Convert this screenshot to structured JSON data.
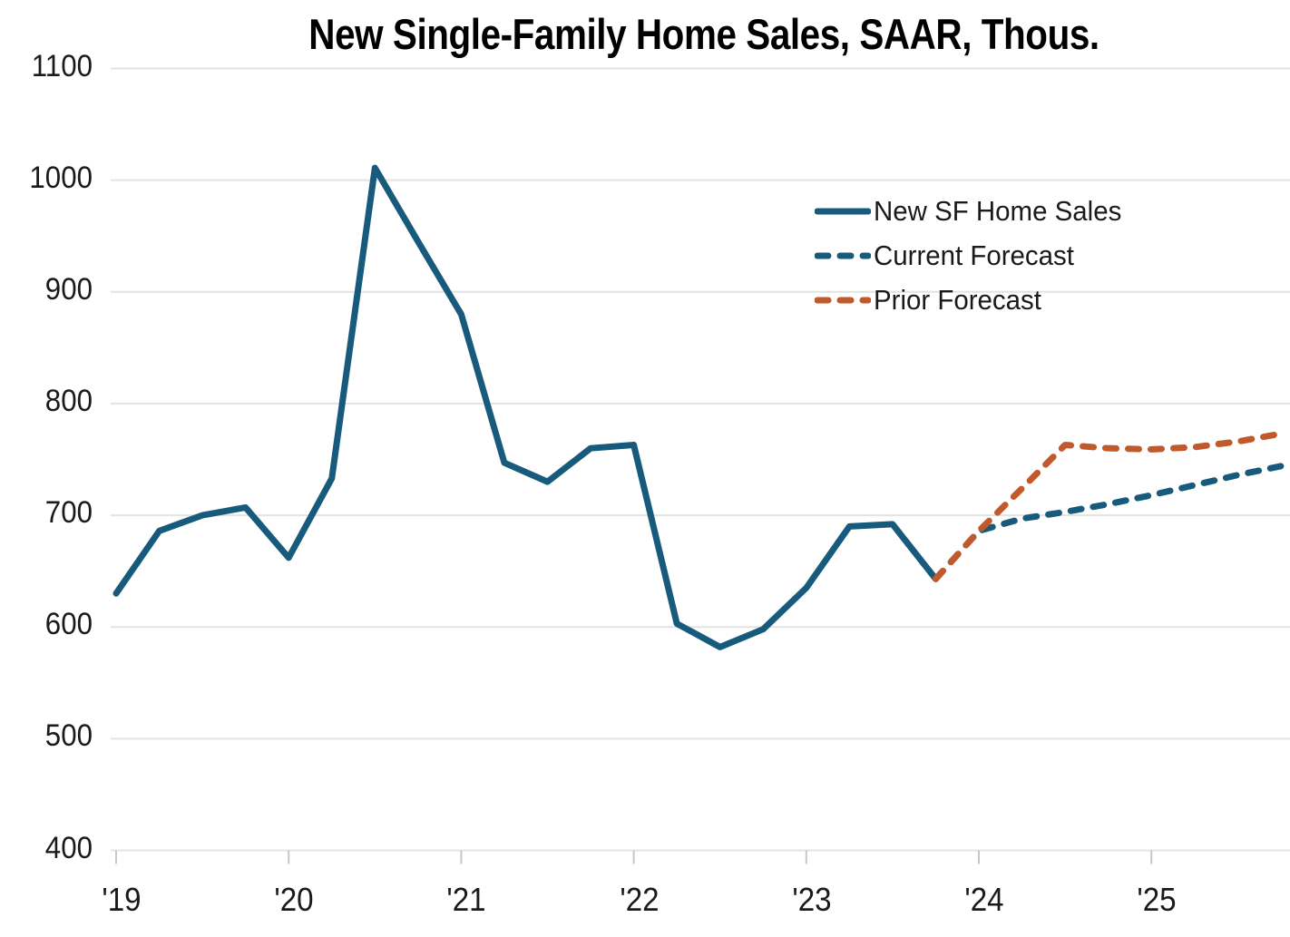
{
  "chart": {
    "title": "New Single-Family Home Sales, SAAR, Thous."
  },
  "colors": {
    "actual_line": "#175A7C",
    "current_forecast_line": "#175A7C",
    "prior_forecast_line": "#C05A2C",
    "grid": "#e3e3e3",
    "axis_tick": "#c8c8c8",
    "text": "#1a1a1a",
    "title_text": "#000000",
    "background": "#ffffff"
  },
  "chart_data": {
    "type": "line",
    "title": "New Single-Family Home Sales, SAAR, Thous.",
    "grid": true,
    "legend_position": "upper right",
    "x_axis": {
      "unit": "quarter",
      "tick_labels": [
        "'19",
        "'20",
        "'21",
        "'22",
        "'23",
        "'24",
        "'25"
      ],
      "tick_quarter_indices": [
        0,
        4,
        8,
        12,
        16,
        20,
        24
      ]
    },
    "y_axis": {
      "min": 400,
      "max": 1100,
      "ticks": [
        400,
        500,
        600,
        700,
        800,
        900,
        1000,
        1100
      ]
    },
    "categories": [
      "2019 Q1",
      "2019 Q2",
      "2019 Q3",
      "2019 Q4",
      "2020 Q1",
      "2020 Q2",
      "2020 Q3",
      "2020 Q4",
      "2021 Q1",
      "2021 Q2",
      "2021 Q3",
      "2021 Q4",
      "2022 Q1",
      "2022 Q2",
      "2022 Q3",
      "2022 Q4",
      "2023 Q1",
      "2023 Q2",
      "2023 Q3",
      "2023 Q4",
      "2024 Q1",
      "2024 Q2",
      "2024 Q3",
      "2024 Q4",
      "2025 Q1",
      "2025 Q2",
      "2025 Q3",
      "2025 Q4"
    ],
    "series": [
      {
        "name": "New SF Home Sales",
        "style": "solid",
        "color": "#175A7C",
        "start": 0,
        "values": [
          630,
          686,
          700,
          707,
          662,
          733,
          1011,
          945,
          880,
          747,
          730,
          760,
          763,
          603,
          582,
          598,
          635,
          690,
          692,
          643
        ]
      },
      {
        "name": "Current Forecast",
        "style": "dashed",
        "color": "#175A7C",
        "start": 19,
        "values": [
          643,
          686,
          697,
          703,
          710,
          718,
          727,
          736,
          744
        ]
      },
      {
        "name": "Prior Forecast",
        "style": "dashed",
        "color": "#C05A2C",
        "start": 19,
        "values": [
          643,
          686,
          724,
          763,
          760,
          759,
          761,
          766,
          773
        ]
      }
    ]
  }
}
